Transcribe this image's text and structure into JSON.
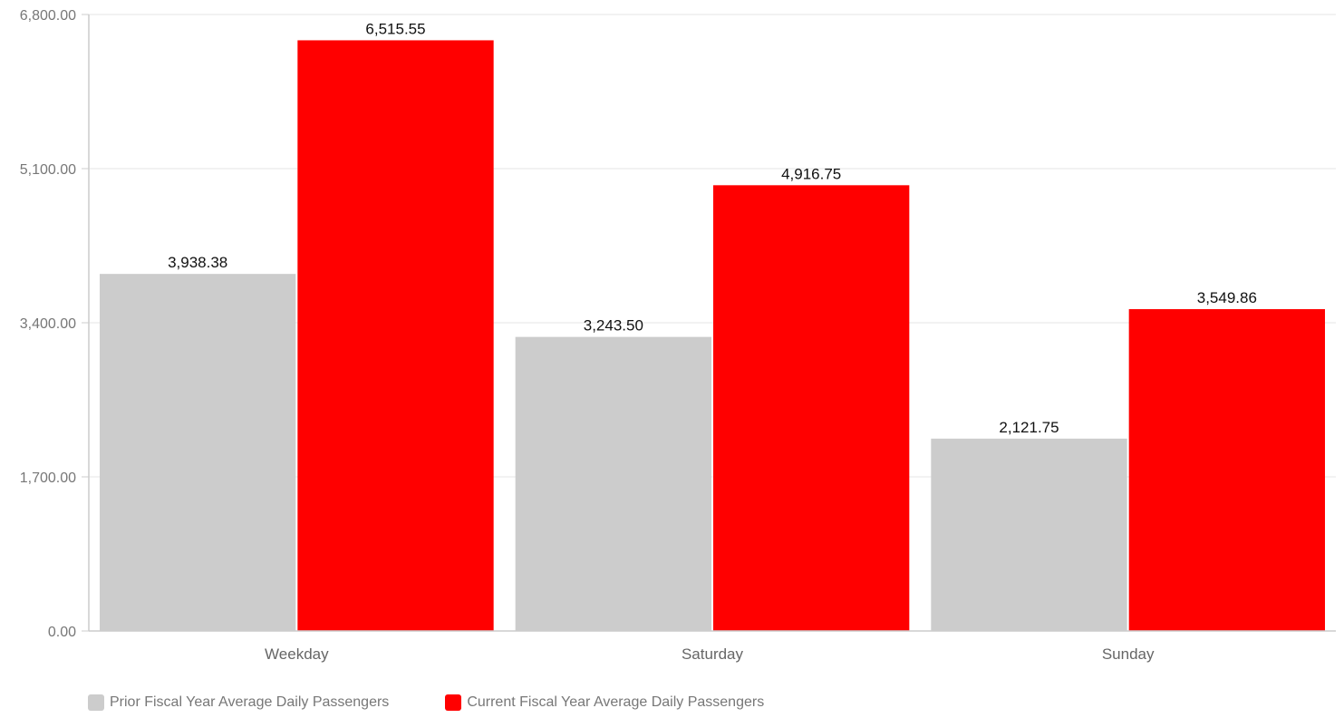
{
  "chart_data": {
    "type": "bar",
    "categories": [
      "Weekday",
      "Saturday",
      "Sunday"
    ],
    "series": [
      {
        "name": "Prior Fiscal Year Average Daily Passengers",
        "values": [
          3938.38,
          3243.5,
          2121.75
        ],
        "color": "#cccccc"
      },
      {
        "name": "Current Fiscal Year Average Daily Passengers",
        "values": [
          6515.55,
          4916.75,
          3549.86
        ],
        "color": "#ff0000"
      }
    ],
    "ylim": [
      0,
      6800
    ],
    "yticks": [
      0,
      1700,
      3400,
      5100,
      6800
    ],
    "ytick_labels": [
      "0.00",
      "1,700.00",
      "3,400.00",
      "5,100.00",
      "6,800.00"
    ],
    "data_labels": [
      [
        "3,938.38",
        "3,243.50",
        "2,121.75"
      ],
      [
        "6,515.55",
        "4,916.75",
        "3,549.86"
      ]
    ],
    "grid": true,
    "legend_position": "bottom-left"
  }
}
